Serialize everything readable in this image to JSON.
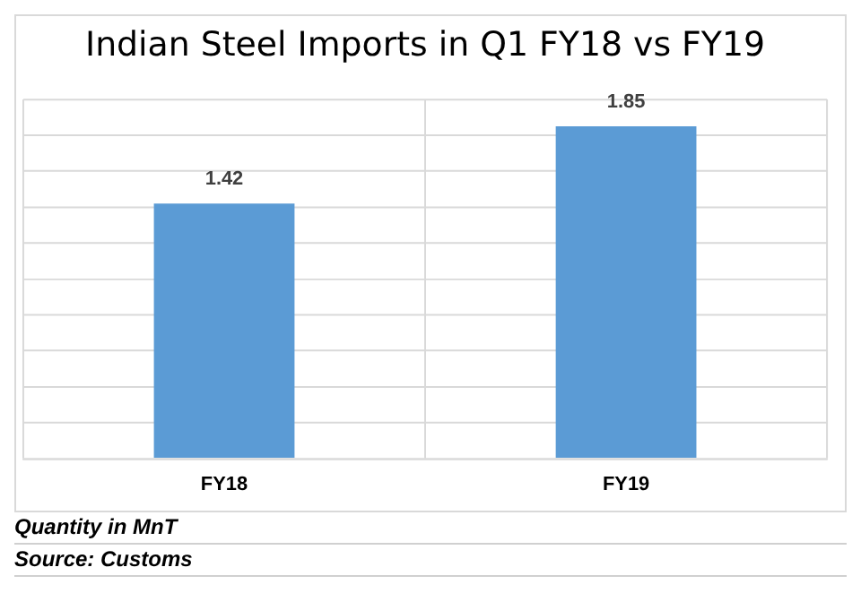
{
  "chart_data": {
    "type": "bar",
    "title": "Indian Steel Imports in Q1 FY18 vs FY19",
    "categories": [
      "FY18",
      "FY19"
    ],
    "values": [
      1.42,
      1.85
    ],
    "color": "#5b9bd5",
    "data_labels": true,
    "ylim": [
      0,
      2.0
    ],
    "yticks": [
      {
        "value": 0,
        "label": null
      },
      {
        "value": 0.2,
        "label": null
      },
      {
        "value": 0.4,
        "label": null
      },
      {
        "value": 0.6,
        "label": null
      },
      {
        "value": 0.8,
        "label": null
      },
      {
        "value": 1.0,
        "label": null
      },
      {
        "value": 1.2,
        "label": null
      },
      {
        "value": 1.4,
        "label": null
      },
      {
        "value": 1.6,
        "label": null
      },
      {
        "value": 1.8,
        "label": null
      },
      {
        "value": 2.0,
        "label": null
      }
    ],
    "tick_labels": "x",
    "grid": true,
    "annotations": [
      "Quantity in MnT",
      "Source: Customs"
    ]
  }
}
